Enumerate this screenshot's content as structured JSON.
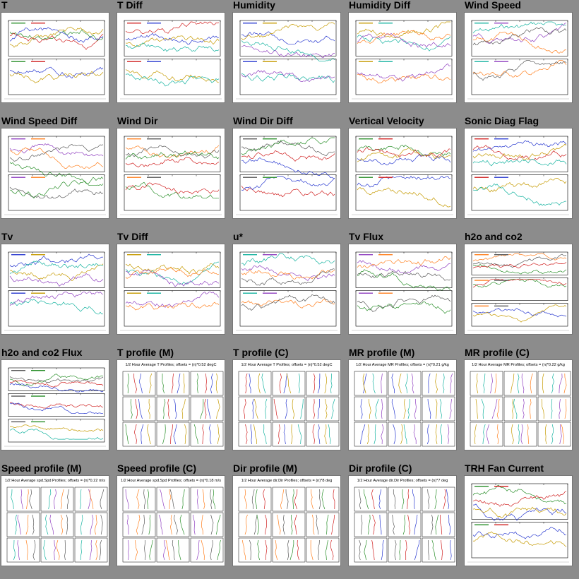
{
  "page": {
    "background": "#8c8c8c"
  },
  "thumbnails": [
    {
      "title": "T",
      "kind": "ts2"
    },
    {
      "title": "T Diff",
      "kind": "ts2"
    },
    {
      "title": "Humidity",
      "kind": "ts2"
    },
    {
      "title": "Humidity Diff",
      "kind": "ts2"
    },
    {
      "title": "Wind Speed",
      "kind": "ts2"
    },
    {
      "title": "Wind Speed Diff",
      "kind": "ts2"
    },
    {
      "title": "Wind Dir",
      "kind": "ts2"
    },
    {
      "title": "Wind Dir Diff",
      "kind": "ts2"
    },
    {
      "title": "Vertical Velocity",
      "kind": "ts2"
    },
    {
      "title": "Sonic Diag Flag",
      "kind": "ts2"
    },
    {
      "title": "Tv",
      "kind": "ts2"
    },
    {
      "title": "Tv Diff",
      "kind": "ts2"
    },
    {
      "title": "u*",
      "kind": "ts2"
    },
    {
      "title": "Tv Flux",
      "kind": "ts2"
    },
    {
      "title": "h2o and co2",
      "kind": "ts3"
    },
    {
      "title": "h2o and co2 Flux",
      "kind": "ts3"
    },
    {
      "title": "T profile (M)",
      "kind": "profile",
      "header": "1/2 Hour Average T Profiles; offsets = (n)*0.52 degC"
    },
    {
      "title": "T profile (C)",
      "kind": "profile",
      "header": "1/2 Hour Average T Profiles; offsets = (n)*0.52 degC"
    },
    {
      "title": "MR profile (M)",
      "kind": "profile",
      "header": "1/2 Hour Average MR Profiles; offsets = (n)*0.21 g/kg"
    },
    {
      "title": "MR profile (C)",
      "kind": "profile",
      "header": "1/2 Hour Average MR Profiles; offsets = (n)*0.22 g/kg"
    },
    {
      "title": "Speed profile (M)",
      "kind": "profile",
      "header": "1/2 Hour Average spd.Spd Profiles; offsets = (n)*0.22 m/s"
    },
    {
      "title": "Speed profile (C)",
      "kind": "profile",
      "header": "1/2 Hour Average spd.Spd Profiles; offsets = (n)*0.18 m/s"
    },
    {
      "title": "Dir profile (M)",
      "kind": "profile",
      "header": "1/2 Hour Average dir.Dir Profiles; offsets = (n)*8 deg"
    },
    {
      "title": "Dir profile (C)",
      "kind": "profile",
      "header": "1/2 Hour Average dir.Dir Profiles; offsets = (n)*7 deg"
    },
    {
      "title": "TRH Fan Current",
      "kind": "ts2"
    }
  ],
  "colors": {
    "ink": "#000000",
    "palette": [
      "#2a8f2a",
      "#d02020",
      "#2a3ad0",
      "#c59a00",
      "#16b3a0",
      "#9040c0",
      "#ff8020",
      "#5a5a5a"
    ]
  }
}
